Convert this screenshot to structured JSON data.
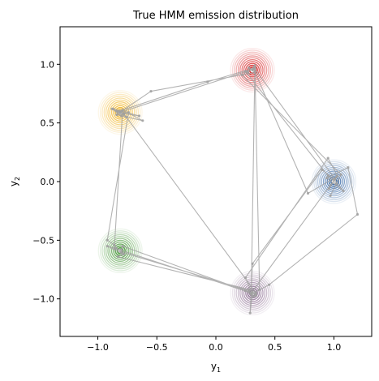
{
  "chart_data": {
    "type": "scatter",
    "title": "True HMM emission distribution",
    "xlabel": "y",
    "xlabel_sub": "1",
    "ylabel": "y",
    "ylabel_sub": "2",
    "xlim": [
      -1.32,
      1.32
    ],
    "ylim": [
      -1.32,
      1.32
    ],
    "x_ticks": [
      -1.0,
      -0.5,
      0.0,
      0.5,
      1.0
    ],
    "x_tick_labels": [
      "−1.0",
      "−0.5",
      "0.0",
      "0.5",
      "1.0"
    ],
    "y_ticks": [
      -1.0,
      -0.5,
      0.0,
      0.5,
      1.0
    ],
    "y_tick_labels": [
      "−1.0",
      "−0.5",
      "0.0",
      "0.5",
      "1.0"
    ],
    "grid": false,
    "emission_components": [
      {
        "mean": [
          0.31,
          0.95
        ],
        "color": "#d62728"
      },
      {
        "mean": [
          -0.81,
          0.59
        ],
        "color": "#f0b323"
      },
      {
        "mean": [
          -0.81,
          -0.59
        ],
        "color": "#4a9a3c"
      },
      {
        "mean": [
          0.31,
          -0.95
        ],
        "color": "#8a6a90"
      },
      {
        "mean": [
          1.0,
          0.0
        ],
        "color": "#3a6aa8"
      }
    ],
    "trajectory_color": "#a0a0a0",
    "trajectory": [
      [
        0.31,
        0.95
      ],
      [
        0.28,
        0.97
      ],
      [
        0.33,
        0.93
      ],
      [
        -0.55,
        0.77
      ],
      [
        -0.8,
        0.6
      ],
      [
        -0.84,
        0.57
      ],
      [
        -0.62,
        0.52
      ],
      [
        -0.79,
        0.61
      ],
      [
        -0.86,
        -0.57
      ],
      [
        -0.8,
        -0.58
      ],
      [
        -0.92,
        -0.55
      ],
      [
        -0.78,
        -0.62
      ],
      [
        -0.83,
        -0.64
      ],
      [
        0.28,
        -0.92
      ],
      [
        0.34,
        -0.97
      ],
      [
        0.31,
        -0.94
      ],
      [
        0.29,
        -1.12
      ],
      [
        0.31,
        -0.7
      ],
      [
        0.9,
        0.1
      ],
      [
        1.0,
        0.02
      ],
      [
        1.08,
        -0.08
      ],
      [
        0.94,
        0.03
      ],
      [
        1.12,
        0.12
      ],
      [
        1.2,
        -0.28
      ],
      [
        0.45,
        -0.88
      ],
      [
        0.3,
        -0.96
      ],
      [
        0.37,
        -0.92
      ],
      [
        0.33,
        0.99
      ],
      [
        0.27,
        0.93
      ],
      [
        0.25,
        0.94
      ],
      [
        0.95,
        0.05
      ],
      [
        1.02,
        -0.02
      ],
      [
        0.97,
        -0.12
      ],
      [
        1.06,
        0.06
      ],
      [
        0.22,
        0.91
      ],
      [
        0.33,
        0.97
      ],
      [
        -0.07,
        0.85
      ],
      [
        -0.82,
        0.6
      ],
      [
        -0.76,
        0.55
      ],
      [
        -0.88,
        0.62
      ],
      [
        -0.8,
        0.56
      ],
      [
        -0.84,
        0.6
      ],
      [
        -0.78,
        0.58
      ],
      [
        -0.74,
        0.59
      ],
      [
        -0.92,
        -0.5
      ],
      [
        -0.86,
        -0.54
      ],
      [
        -0.8,
        -0.61
      ],
      [
        -0.79,
        -0.55
      ],
      [
        0.33,
        -0.96
      ],
      [
        0.25,
        -0.93
      ],
      [
        0.32,
        -0.98
      ],
      [
        0.25,
        -0.82
      ],
      [
        0.95,
        0.2
      ],
      [
        1.03,
        0.05
      ],
      [
        0.96,
        -0.06
      ],
      [
        1.02,
        0.04
      ],
      [
        0.78,
        -0.1
      ],
      [
        0.32,
        0.96
      ],
      [
        -0.81,
        0.59
      ],
      [
        -0.87,
        0.62
      ],
      [
        -0.65,
        0.56
      ],
      [
        -0.78,
        0.58
      ],
      [
        0.34,
        -0.95
      ],
      [
        0.3,
        -0.96
      ],
      [
        0.33,
        0.96
      ],
      [
        1.01,
        0.02
      ],
      [
        0.97,
        -0.03
      ],
      [
        0.3,
        -0.95
      ],
      [
        -0.85,
        -0.57
      ],
      [
        -0.8,
        -0.6
      ],
      [
        0.28,
        -0.93
      ]
    ]
  }
}
